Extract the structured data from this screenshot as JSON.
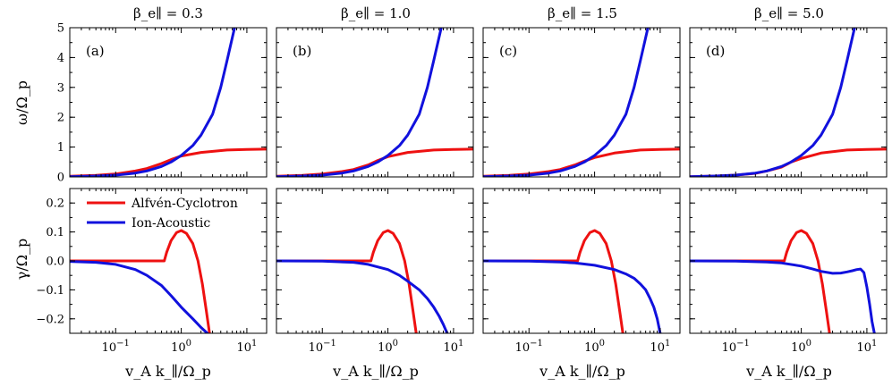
{
  "figure": {
    "col_titles": [
      "β_e∥ = 0.3",
      "β_e∥ = 1.0",
      "β_e∥ = 1.5",
      "β_e∥ = 5.0"
    ],
    "panel_tags": [
      "(a)",
      "(b)",
      "(c)",
      "(d)"
    ],
    "top_ylabel": "ω/Ω_p",
    "bottom_ylabel": "γ/Ω_p",
    "xlabel": "v_A k_∥/Ω_p",
    "legend": [
      "Alfvén-Cyclotron",
      "Ion-Acoustic"
    ],
    "colors": {
      "alfven": "#ee1111",
      "ion": "#1111dd"
    }
  },
  "chart_data": {
    "type": "line",
    "x_scale": "log",
    "xlim": [
      0.02,
      20
    ],
    "x_ticks": [
      0.1,
      1,
      10
    ],
    "x_tick_labels": [
      "10^−1",
      "10^0",
      "10^1"
    ],
    "top_ylim": [
      0,
      5
    ],
    "top_yticks": [
      0,
      1,
      2,
      3,
      4,
      5
    ],
    "top_ytick_labels": [
      "0",
      "1",
      "2",
      "3",
      "4",
      "5"
    ],
    "bottom_ylim": [
      -0.25,
      0.25
    ],
    "bottom_yticks": [
      -0.2,
      -0.1,
      0.0,
      0.1,
      0.2
    ],
    "bottom_ytick_labels": [
      "−0.2",
      "−0.1",
      "0.0",
      "0.1",
      "0.2"
    ],
    "panels": [
      {
        "beta": 0.3,
        "tag": "(a)",
        "omega_alfven": {
          "x": [
            0.02,
            0.05,
            0.1,
            0.2,
            0.3,
            0.5,
            0.7,
            1.0,
            2,
            5,
            10,
            20
          ],
          "y": [
            0.02,
            0.05,
            0.1,
            0.2,
            0.28,
            0.45,
            0.58,
            0.7,
            0.82,
            0.9,
            0.92,
            0.93
          ]
        },
        "omega_ion": {
          "x": [
            0.02,
            0.05,
            0.1,
            0.2,
            0.3,
            0.5,
            0.7,
            1.0,
            1.5,
            2,
            3,
            4,
            5,
            6.5
          ],
          "y": [
            0.01,
            0.03,
            0.06,
            0.13,
            0.2,
            0.35,
            0.5,
            0.72,
            1.05,
            1.4,
            2.1,
            3.0,
            3.9,
            5.0
          ]
        },
        "gamma_alfven": {
          "x": [
            0.02,
            0.3,
            0.55,
            0.6,
            0.7,
            0.85,
            1.0,
            1.2,
            1.5,
            1.8,
            2.1,
            2.4,
            2.7
          ],
          "y": [
            0.0,
            0.0,
            0.0,
            0.03,
            0.07,
            0.098,
            0.105,
            0.095,
            0.06,
            0.0,
            -0.08,
            -0.17,
            -0.25
          ]
        },
        "gamma_ion": {
          "x": [
            0.02,
            0.05,
            0.1,
            0.2,
            0.3,
            0.5,
            0.7,
            1.0,
            1.5,
            2.0,
            2.5
          ],
          "y": [
            -0.002,
            -0.005,
            -0.012,
            -0.03,
            -0.05,
            -0.085,
            -0.12,
            -0.16,
            -0.2,
            -0.23,
            -0.25
          ]
        }
      },
      {
        "beta": 1.0,
        "tag": "(b)",
        "omega_alfven": {
          "x": [
            0.02,
            0.05,
            0.1,
            0.2,
            0.3,
            0.5,
            0.7,
            1.0,
            2,
            5,
            10,
            20
          ],
          "y": [
            0.02,
            0.05,
            0.1,
            0.18,
            0.25,
            0.4,
            0.55,
            0.68,
            0.82,
            0.9,
            0.92,
            0.93
          ]
        },
        "omega_ion": {
          "x": [
            0.02,
            0.05,
            0.1,
            0.2,
            0.3,
            0.5,
            0.7,
            1.0,
            1.5,
            2,
            3,
            4,
            5,
            6.5
          ],
          "y": [
            0.01,
            0.03,
            0.06,
            0.13,
            0.2,
            0.35,
            0.5,
            0.72,
            1.05,
            1.4,
            2.1,
            3.0,
            3.9,
            5.0
          ]
        },
        "gamma_alfven": {
          "x": [
            0.02,
            0.3,
            0.55,
            0.6,
            0.7,
            0.85,
            1.0,
            1.2,
            1.5,
            1.8,
            2.1,
            2.4,
            2.7
          ],
          "y": [
            0.0,
            0.0,
            0.0,
            0.03,
            0.07,
            0.098,
            0.105,
            0.095,
            0.06,
            0.0,
            -0.08,
            -0.17,
            -0.25
          ]
        },
        "gamma_ion": {
          "x": [
            0.02,
            0.1,
            0.3,
            0.5,
            1.0,
            1.5,
            2.0,
            3.0,
            4.0,
            5.0,
            6.0,
            7.0,
            8.0
          ],
          "y": [
            0.0,
            -0.001,
            -0.005,
            -0.012,
            -0.03,
            -0.05,
            -0.07,
            -0.1,
            -0.13,
            -0.16,
            -0.19,
            -0.22,
            -0.25
          ]
        }
      },
      {
        "beta": 1.5,
        "tag": "(c)",
        "omega_alfven": {
          "x": [
            0.02,
            0.05,
            0.1,
            0.2,
            0.3,
            0.5,
            0.7,
            1.0,
            2,
            5,
            10,
            20
          ],
          "y": [
            0.02,
            0.05,
            0.1,
            0.18,
            0.25,
            0.4,
            0.53,
            0.65,
            0.8,
            0.9,
            0.92,
            0.93
          ]
        },
        "omega_ion": {
          "x": [
            0.02,
            0.05,
            0.1,
            0.2,
            0.3,
            0.5,
            0.7,
            1.0,
            1.5,
            2,
            3,
            4,
            5,
            6.5
          ],
          "y": [
            0.01,
            0.03,
            0.06,
            0.13,
            0.2,
            0.35,
            0.5,
            0.72,
            1.05,
            1.4,
            2.1,
            3.0,
            3.9,
            5.0
          ]
        },
        "gamma_alfven": {
          "x": [
            0.02,
            0.3,
            0.55,
            0.6,
            0.7,
            0.85,
            1.0,
            1.2,
            1.5,
            1.8,
            2.1,
            2.4,
            2.7
          ],
          "y": [
            0.0,
            0.0,
            0.0,
            0.03,
            0.07,
            0.098,
            0.105,
            0.095,
            0.06,
            0.0,
            -0.08,
            -0.17,
            -0.25
          ]
        },
        "gamma_ion": {
          "x": [
            0.02,
            0.1,
            0.3,
            0.5,
            1.0,
            2.0,
            3.0,
            4.0,
            5.0,
            6.0,
            7.0,
            8.0,
            9.0,
            10.0
          ],
          "y": [
            0.0,
            -0.001,
            -0.004,
            -0.007,
            -0.015,
            -0.03,
            -0.045,
            -0.06,
            -0.08,
            -0.1,
            -0.13,
            -0.16,
            -0.2,
            -0.25
          ]
        }
      },
      {
        "beta": 5.0,
        "tag": "(d)",
        "omega_alfven": {
          "x": [
            0.02,
            0.05,
            0.1,
            0.2,
            0.3,
            0.5,
            0.6,
            0.7,
            1.0,
            2,
            5,
            10,
            20
          ],
          "y": [
            0.01,
            0.03,
            0.06,
            0.12,
            0.2,
            0.33,
            0.42,
            0.5,
            0.62,
            0.8,
            0.9,
            0.92,
            0.93
          ]
        },
        "omega_ion": {
          "x": [
            0.02,
            0.05,
            0.1,
            0.2,
            0.3,
            0.5,
            0.7,
            1.0,
            1.5,
            2,
            3,
            4,
            5,
            6.5
          ],
          "y": [
            0.01,
            0.03,
            0.06,
            0.13,
            0.2,
            0.35,
            0.5,
            0.72,
            1.05,
            1.4,
            2.1,
            3.0,
            3.9,
            5.0
          ]
        },
        "gamma_alfven": {
          "x": [
            0.02,
            0.3,
            0.55,
            0.6,
            0.7,
            0.85,
            1.0,
            1.2,
            1.5,
            1.8,
            2.1,
            2.4,
            2.7
          ],
          "y": [
            0.0,
            0.0,
            0.0,
            0.03,
            0.07,
            0.098,
            0.105,
            0.095,
            0.06,
            0.0,
            -0.08,
            -0.17,
            -0.25
          ]
        },
        "gamma_ion": {
          "x": [
            0.02,
            0.1,
            0.3,
            0.5,
            1.0,
            1.5,
            2.0,
            3.0,
            4.0,
            5.0,
            6.0,
            7.0,
            8.0,
            9.0,
            10.0,
            11.0,
            12.0,
            13.0
          ],
          "y": [
            0.0,
            -0.001,
            -0.004,
            -0.007,
            -0.018,
            -0.028,
            -0.036,
            -0.043,
            -0.042,
            -0.038,
            -0.034,
            -0.03,
            -0.028,
            -0.04,
            -0.09,
            -0.15,
            -0.21,
            -0.25
          ]
        }
      }
    ]
  }
}
